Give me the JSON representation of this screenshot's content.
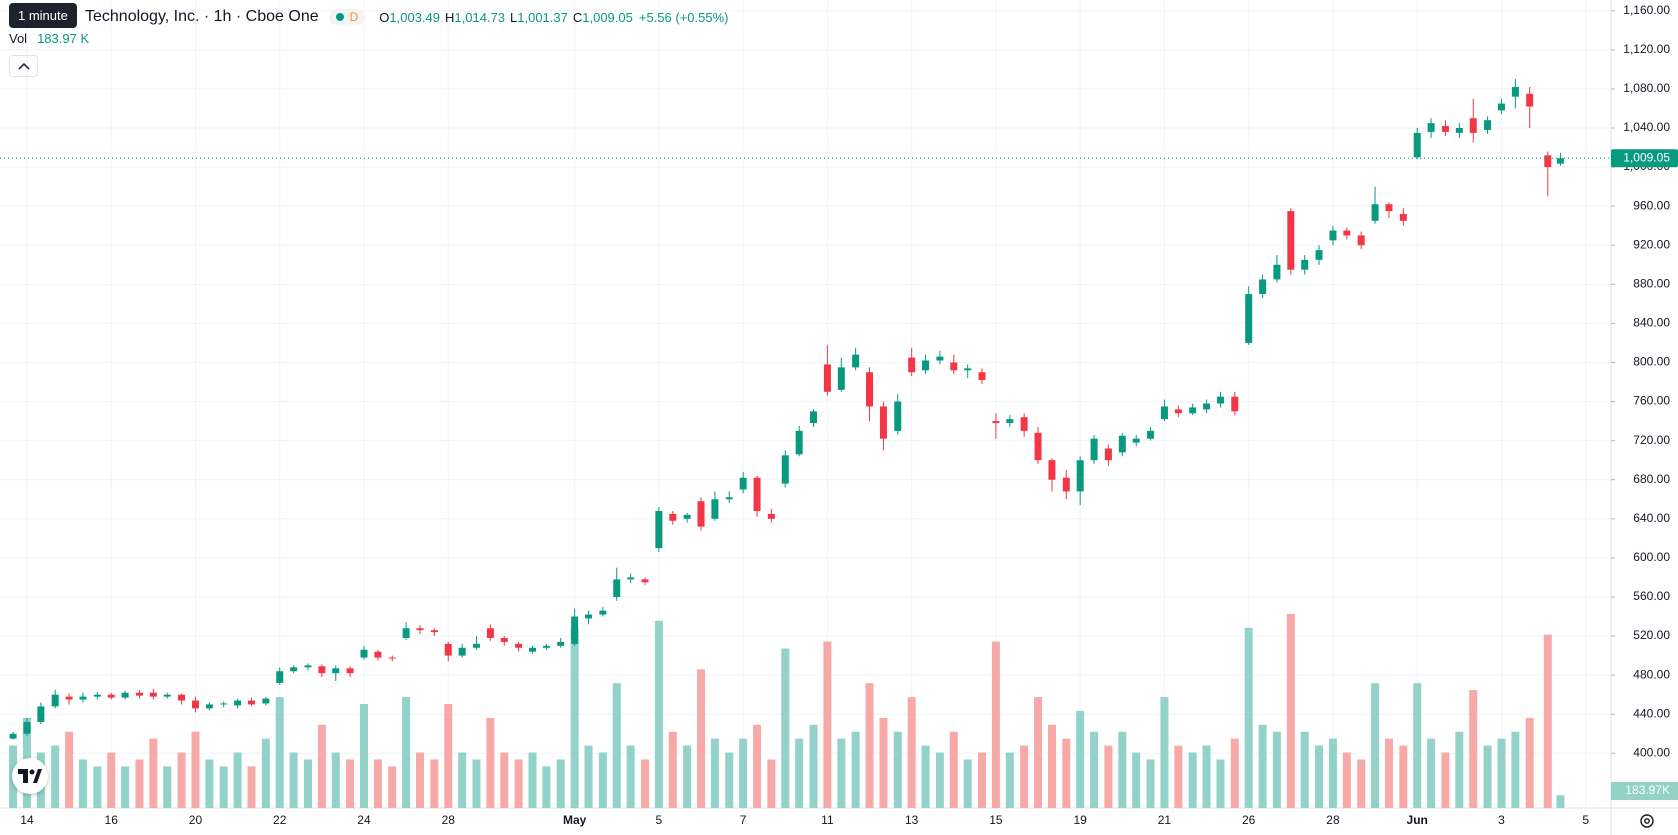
{
  "tooltip": "1 minute",
  "header": {
    "title": "Technology, Inc. · 1h · Cboe One",
    "interval_badge": "D",
    "ohlc": [
      {
        "key": "O",
        "value": "1,003.49"
      },
      {
        "key": "H",
        "value": "1,014.73"
      },
      {
        "key": "L",
        "value": "1,001.37"
      },
      {
        "key": "C",
        "value": "1,009.05"
      }
    ],
    "change": "+5.56 (+0.55%)",
    "volume_key": "Vol",
    "volume_value": "183.97 K"
  },
  "chart_data": {
    "type": "candlestick",
    "up_color": "#089981",
    "down_color": "#f23645",
    "up_volume_color": "#92d2c8",
    "down_volume_color": "#f7a9a8",
    "grid": true,
    "xlim": [
      -0.64,
      37.6
    ],
    "xticks": [
      {
        "value": 0,
        "label": "14"
      },
      {
        "value": 2,
        "label": "16"
      },
      {
        "value": 4,
        "label": "20"
      },
      {
        "value": 6,
        "label": "22"
      },
      {
        "value": 8,
        "label": "24"
      },
      {
        "value": 10,
        "label": "28"
      },
      {
        "value": 13,
        "label": "May"
      },
      {
        "value": 15,
        "label": "5"
      },
      {
        "value": 17,
        "label": "7"
      },
      {
        "value": 19,
        "label": "11"
      },
      {
        "value": 21,
        "label": "13"
      },
      {
        "value": 23,
        "label": "15"
      },
      {
        "value": 25,
        "label": "19"
      },
      {
        "value": 27,
        "label": "21"
      },
      {
        "value": 29,
        "label": "26"
      },
      {
        "value": 31,
        "label": "28"
      },
      {
        "value": 33,
        "label": "Jun"
      },
      {
        "value": 35,
        "label": "3"
      },
      {
        "value": 37,
        "label": "5"
      }
    ],
    "ylim": [
      344,
      1171
    ],
    "yticks": [
      {
        "value": 400,
        "label": "400.00"
      },
      {
        "value": 440,
        "label": "440.00"
      },
      {
        "value": 480,
        "label": "480.00"
      },
      {
        "value": 520,
        "label": "520.00"
      },
      {
        "value": 560,
        "label": "560.00"
      },
      {
        "value": 600,
        "label": "600.00"
      },
      {
        "value": 640,
        "label": "640.00"
      },
      {
        "value": 680,
        "label": "680.00"
      },
      {
        "value": 720,
        "label": "720.00"
      },
      {
        "value": 760,
        "label": "760.00"
      },
      {
        "value": 800,
        "label": "800.00"
      },
      {
        "value": 840,
        "label": "840.00"
      },
      {
        "value": 880,
        "label": "880.00"
      },
      {
        "value": 920,
        "label": "920.00"
      },
      {
        "value": 960,
        "label": "960.00"
      },
      {
        "value": 1000,
        "label": "1,000.00"
      },
      {
        "value": 1040,
        "label": "1,040.00"
      },
      {
        "value": 1080,
        "label": "1,080.00"
      },
      {
        "value": 1120,
        "label": "1,120.00"
      },
      {
        "value": 1160,
        "label": "1,160.00"
      }
    ],
    "volume_lim": [
      0,
      3000
    ],
    "price_label": "1,009.05",
    "volume_label": "183.97K",
    "candles": [
      {
        "x": -0.33,
        "open": 415,
        "high": 422,
        "low": 414,
        "close": 420,
        "volume": 900
      },
      {
        "x": 0,
        "open": 420,
        "high": 436,
        "low": 418,
        "close": 432,
        "volume": 1300
      },
      {
        "x": 0.33,
        "open": 432,
        "high": 452,
        "low": 430,
        "close": 448,
        "volume": 800
      },
      {
        "x": 0.67,
        "open": 448,
        "high": 465,
        "low": 446,
        "close": 460,
        "volume": 900
      },
      {
        "x": 1,
        "open": 458,
        "high": 461,
        "low": 450,
        "close": 455,
        "volume": 1100
      },
      {
        "x": 1.33,
        "open": 455,
        "high": 462,
        "low": 452,
        "close": 458,
        "volume": 700
      },
      {
        "x": 1.67,
        "open": 458,
        "high": 463,
        "low": 455,
        "close": 460,
        "volume": 600
      },
      {
        "x": 2,
        "open": 460,
        "high": 462,
        "low": 455,
        "close": 457,
        "volume": 800
      },
      {
        "x": 2.33,
        "open": 457,
        "high": 464,
        "low": 455,
        "close": 462,
        "volume": 600
      },
      {
        "x": 2.67,
        "open": 462,
        "high": 465,
        "low": 456,
        "close": 459,
        "volume": 700
      },
      {
        "x": 3,
        "open": 462,
        "high": 466,
        "low": 455,
        "close": 458,
        "volume": 1000
      },
      {
        "x": 3.33,
        "open": 458,
        "high": 462,
        "low": 456,
        "close": 460,
        "volume": 600
      },
      {
        "x": 3.67,
        "open": 460,
        "high": 461,
        "low": 450,
        "close": 454,
        "volume": 800
      },
      {
        "x": 4,
        "open": 454,
        "high": 458,
        "low": 442,
        "close": 446,
        "volume": 1100
      },
      {
        "x": 4.33,
        "open": 446,
        "high": 452,
        "low": 444,
        "close": 450,
        "volume": 700
      },
      {
        "x": 4.67,
        "open": 450,
        "high": 453,
        "low": 447,
        "close": 451,
        "volume": 600
      },
      {
        "x": 5,
        "open": 449,
        "high": 456,
        "low": 446,
        "close": 454,
        "volume": 800
      },
      {
        "x": 5.33,
        "open": 454,
        "high": 457,
        "low": 448,
        "close": 450,
        "volume": 600
      },
      {
        "x": 5.67,
        "open": 451,
        "high": 458,
        "low": 449,
        "close": 456,
        "volume": 1000
      },
      {
        "x": 6,
        "open": 472,
        "high": 488,
        "low": 470,
        "close": 484,
        "volume": 1600
      },
      {
        "x": 6.33,
        "open": 484,
        "high": 490,
        "low": 482,
        "close": 488,
        "volume": 800
      },
      {
        "x": 6.67,
        "open": 488,
        "high": 492,
        "low": 485,
        "close": 490,
        "volume": 700
      },
      {
        "x": 7,
        "open": 489,
        "high": 491,
        "low": 478,
        "close": 482,
        "volume": 1200
      },
      {
        "x": 7.33,
        "open": 482,
        "high": 490,
        "low": 474,
        "close": 487,
        "volume": 800
      },
      {
        "x": 7.67,
        "open": 487,
        "high": 489,
        "low": 478,
        "close": 482,
        "volume": 700
      },
      {
        "x": 8,
        "open": 498,
        "high": 510,
        "low": 496,
        "close": 506,
        "volume": 1500
      },
      {
        "x": 8.33,
        "open": 504,
        "high": 506,
        "low": 495,
        "close": 498,
        "volume": 700
      },
      {
        "x": 8.67,
        "open": 498,
        "high": 500,
        "low": 494,
        "close": 497,
        "volume": 600
      },
      {
        "x": 9,
        "open": 518,
        "high": 534,
        "low": 516,
        "close": 528,
        "volume": 1600
      },
      {
        "x": 9.33,
        "open": 528,
        "high": 531,
        "low": 522,
        "close": 526,
        "volume": 800
      },
      {
        "x": 9.67,
        "open": 526,
        "high": 528,
        "low": 520,
        "close": 524,
        "volume": 700
      },
      {
        "x": 10,
        "open": 512,
        "high": 514,
        "low": 494,
        "close": 500,
        "volume": 1500
      },
      {
        "x": 10.33,
        "open": 500,
        "high": 512,
        "low": 498,
        "close": 508,
        "volume": 800
      },
      {
        "x": 10.67,
        "open": 508,
        "high": 520,
        "low": 506,
        "close": 512,
        "volume": 700
      },
      {
        "x": 11,
        "open": 528,
        "high": 532,
        "low": 515,
        "close": 518,
        "volume": 1300
      },
      {
        "x": 11.33,
        "open": 518,
        "high": 520,
        "low": 510,
        "close": 514,
        "volume": 800
      },
      {
        "x": 11.67,
        "open": 512,
        "high": 514,
        "low": 504,
        "close": 508,
        "volume": 700
      },
      {
        "x": 12,
        "open": 504,
        "high": 510,
        "low": 502,
        "close": 508,
        "volume": 800
      },
      {
        "x": 12.33,
        "open": 508,
        "high": 512,
        "low": 506,
        "close": 510,
        "volume": 600
      },
      {
        "x": 12.67,
        "open": 510,
        "high": 518,
        "low": 508,
        "close": 514,
        "volume": 700
      },
      {
        "x": 13,
        "open": 512,
        "high": 548,
        "low": 510,
        "close": 540,
        "volume": 2600
      },
      {
        "x": 13.33,
        "open": 538,
        "high": 546,
        "low": 532,
        "close": 542,
        "volume": 900
      },
      {
        "x": 13.67,
        "open": 542,
        "high": 550,
        "low": 540,
        "close": 546,
        "volume": 800
      },
      {
        "x": 14,
        "open": 560,
        "high": 590,
        "low": 556,
        "close": 578,
        "volume": 1800
      },
      {
        "x": 14.33,
        "open": 578,
        "high": 584,
        "low": 574,
        "close": 580,
        "volume": 900
      },
      {
        "x": 14.67,
        "open": 578,
        "high": 580,
        "low": 572,
        "close": 575,
        "volume": 700
      },
      {
        "x": 15,
        "open": 610,
        "high": 652,
        "low": 606,
        "close": 648,
        "volume": 2700
      },
      {
        "x": 15.33,
        "open": 645,
        "high": 648,
        "low": 634,
        "close": 638,
        "volume": 1100
      },
      {
        "x": 15.67,
        "open": 640,
        "high": 646,
        "low": 636,
        "close": 644,
        "volume": 900
      },
      {
        "x": 16,
        "open": 658,
        "high": 662,
        "low": 628,
        "close": 632,
        "volume": 2000
      },
      {
        "x": 16.33,
        "open": 640,
        "high": 668,
        "low": 638,
        "close": 660,
        "volume": 1000
      },
      {
        "x": 16.67,
        "open": 660,
        "high": 668,
        "low": 656,
        "close": 662,
        "volume": 800
      },
      {
        "x": 17,
        "open": 670,
        "high": 688,
        "low": 666,
        "close": 682,
        "volume": 1000
      },
      {
        "x": 17.33,
        "open": 682,
        "high": 684,
        "low": 642,
        "close": 648,
        "volume": 1200
      },
      {
        "x": 17.67,
        "open": 645,
        "high": 650,
        "low": 636,
        "close": 640,
        "volume": 700
      },
      {
        "x": 18,
        "open": 676,
        "high": 710,
        "low": 672,
        "close": 705,
        "volume": 2300
      },
      {
        "x": 18.33,
        "open": 706,
        "high": 735,
        "low": 704,
        "close": 730,
        "volume": 1000
      },
      {
        "x": 18.67,
        "open": 738,
        "high": 752,
        "low": 734,
        "close": 750,
        "volume": 1200
      },
      {
        "x": 19,
        "open": 798,
        "high": 818,
        "low": 766,
        "close": 770,
        "volume": 2400
      },
      {
        "x": 19.33,
        "open": 772,
        "high": 805,
        "low": 770,
        "close": 795,
        "volume": 1000
      },
      {
        "x": 19.67,
        "open": 795,
        "high": 815,
        "low": 792,
        "close": 808,
        "volume": 1100
      },
      {
        "x": 20,
        "open": 790,
        "high": 795,
        "low": 740,
        "close": 755,
        "volume": 1800
      },
      {
        "x": 20.33,
        "open": 755,
        "high": 760,
        "low": 710,
        "close": 722,
        "volume": 1300
      },
      {
        "x": 20.67,
        "open": 730,
        "high": 768,
        "low": 726,
        "close": 760,
        "volume": 1100
      },
      {
        "x": 21,
        "open": 805,
        "high": 815,
        "low": 786,
        "close": 790,
        "volume": 1600
      },
      {
        "x": 21.33,
        "open": 792,
        "high": 808,
        "low": 788,
        "close": 802,
        "volume": 900
      },
      {
        "x": 21.67,
        "open": 802,
        "high": 812,
        "low": 798,
        "close": 806,
        "volume": 800
      },
      {
        "x": 22,
        "open": 800,
        "high": 808,
        "low": 788,
        "close": 792,
        "volume": 1100
      },
      {
        "x": 22.33,
        "open": 792,
        "high": 798,
        "low": 784,
        "close": 794,
        "volume": 700
      },
      {
        "x": 22.67,
        "open": 790,
        "high": 794,
        "low": 778,
        "close": 782,
        "volume": 800
      },
      {
        "x": 23,
        "open": 740,
        "high": 748,
        "low": 722,
        "close": 738,
        "volume": 2400
      },
      {
        "x": 23.33,
        "open": 738,
        "high": 746,
        "low": 734,
        "close": 742,
        "volume": 800
      },
      {
        "x": 23.67,
        "open": 744,
        "high": 748,
        "low": 724,
        "close": 730,
        "volume": 900
      },
      {
        "x": 24,
        "open": 728,
        "high": 734,
        "low": 696,
        "close": 700,
        "volume": 1600
      },
      {
        "x": 24.33,
        "open": 700,
        "high": 702,
        "low": 668,
        "close": 680,
        "volume": 1200
      },
      {
        "x": 24.67,
        "open": 682,
        "high": 690,
        "low": 660,
        "close": 668,
        "volume": 1000
      },
      {
        "x": 25,
        "open": 668,
        "high": 704,
        "low": 654,
        "close": 700,
        "volume": 1400
      },
      {
        "x": 25.33,
        "open": 700,
        "high": 726,
        "low": 696,
        "close": 722,
        "volume": 1100
      },
      {
        "x": 25.67,
        "open": 712,
        "high": 716,
        "low": 694,
        "close": 700,
        "volume": 900
      },
      {
        "x": 26,
        "open": 708,
        "high": 728,
        "low": 704,
        "close": 725,
        "volume": 1100
      },
      {
        "x": 26.33,
        "open": 718,
        "high": 726,
        "low": 714,
        "close": 722,
        "volume": 800
      },
      {
        "x": 26.67,
        "open": 722,
        "high": 734,
        "low": 720,
        "close": 730,
        "volume": 700
      },
      {
        "x": 27,
        "open": 742,
        "high": 762,
        "low": 740,
        "close": 755,
        "volume": 1600
      },
      {
        "x": 27.33,
        "open": 752,
        "high": 756,
        "low": 744,
        "close": 748,
        "volume": 900
      },
      {
        "x": 27.67,
        "open": 748,
        "high": 758,
        "low": 746,
        "close": 754,
        "volume": 800
      },
      {
        "x": 28,
        "open": 752,
        "high": 762,
        "low": 748,
        "close": 758,
        "volume": 900
      },
      {
        "x": 28.33,
        "open": 758,
        "high": 770,
        "low": 754,
        "close": 765,
        "volume": 700
      },
      {
        "x": 28.67,
        "open": 765,
        "high": 770,
        "low": 746,
        "close": 750,
        "volume": 1000
      },
      {
        "x": 29,
        "open": 820,
        "high": 878,
        "low": 818,
        "close": 870,
        "volume": 2600
      },
      {
        "x": 29.33,
        "open": 870,
        "high": 890,
        "low": 866,
        "close": 885,
        "volume": 1200
      },
      {
        "x": 29.67,
        "open": 885,
        "high": 910,
        "low": 882,
        "close": 900,
        "volume": 1100
      },
      {
        "x": 30,
        "open": 955,
        "high": 958,
        "low": 890,
        "close": 895,
        "volume": 2800
      },
      {
        "x": 30.33,
        "open": 895,
        "high": 910,
        "low": 890,
        "close": 905,
        "volume": 1100
      },
      {
        "x": 30.67,
        "open": 905,
        "high": 920,
        "low": 900,
        "close": 915,
        "volume": 900
      },
      {
        "x": 31,
        "open": 925,
        "high": 940,
        "low": 920,
        "close": 935,
        "volume": 1000
      },
      {
        "x": 31.33,
        "open": 935,
        "high": 938,
        "low": 926,
        "close": 930,
        "volume": 800
      },
      {
        "x": 31.67,
        "open": 930,
        "high": 934,
        "low": 916,
        "close": 920,
        "volume": 700
      },
      {
        "x": 32,
        "open": 945,
        "high": 980,
        "low": 942,
        "close": 962,
        "volume": 1800
      },
      {
        "x": 32.33,
        "open": 962,
        "high": 964,
        "low": 948,
        "close": 955,
        "volume": 1000
      },
      {
        "x": 32.67,
        "open": 952,
        "high": 958,
        "low": 940,
        "close": 945,
        "volume": 900
      },
      {
        "x": 33,
        "open": 1010,
        "high": 1040,
        "low": 1008,
        "close": 1035,
        "volume": 1800
      },
      {
        "x": 33.33,
        "open": 1036,
        "high": 1050,
        "low": 1030,
        "close": 1045,
        "volume": 1000
      },
      {
        "x": 33.67,
        "open": 1042,
        "high": 1048,
        "low": 1032,
        "close": 1036,
        "volume": 800
      },
      {
        "x": 34,
        "open": 1035,
        "high": 1045,
        "low": 1030,
        "close": 1040,
        "volume": 1100
      },
      {
        "x": 34.33,
        "open": 1050,
        "high": 1070,
        "low": 1025,
        "close": 1035,
        "volume": 1700
      },
      {
        "x": 34.67,
        "open": 1038,
        "high": 1052,
        "low": 1034,
        "close": 1048,
        "volume": 900
      },
      {
        "x": 35,
        "open": 1058,
        "high": 1070,
        "low": 1054,
        "close": 1065,
        "volume": 1000
      },
      {
        "x": 35.33,
        "open": 1072,
        "high": 1090,
        "low": 1060,
        "close": 1082,
        "volume": 1100
      },
      {
        "x": 35.67,
        "open": 1075,
        "high": 1082,
        "low": 1040,
        "close": 1062,
        "volume": 1300
      },
      {
        "x": 36.1,
        "open": 1012,
        "high": 1016,
        "low": 970,
        "close": 1000,
        "volume": 2500
      },
      {
        "x": 36.4,
        "open": 1003.49,
        "high": 1014.73,
        "low": 1001.37,
        "close": 1009.05,
        "volume": 183.97
      }
    ]
  }
}
